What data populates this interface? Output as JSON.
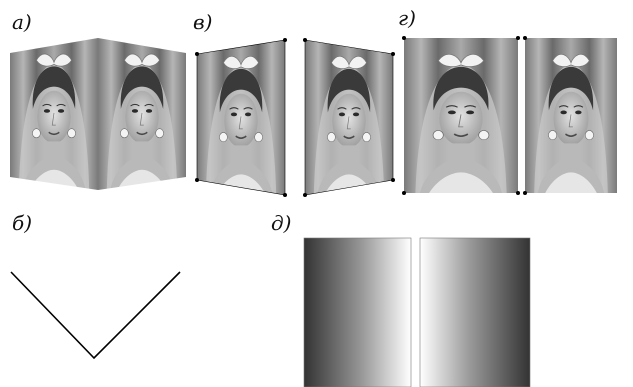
{
  "labels": {
    "a": "а)",
    "v": "в)",
    "g": "г)",
    "b": "б)",
    "d": "д)"
  },
  "colors": {
    "background": "#ffffff",
    "stroke": "#000000",
    "photo_dark": "#3c3c3c",
    "photo_light": "#d8d8d8"
  },
  "icons": {
    "portrait": "bride-portrait-icon"
  }
}
